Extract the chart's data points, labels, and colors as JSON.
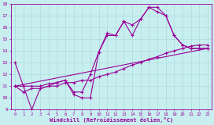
{
  "xlabel": "Windchill (Refroidissement éolien,°C)",
  "bg_color": "#c8eef0",
  "line_color": "#990099",
  "grid_color": "#aadddd",
  "xlim": [
    -0.5,
    23.5
  ],
  "ylim": [
    9,
    18
  ],
  "xticks": [
    0,
    1,
    2,
    3,
    4,
    5,
    6,
    7,
    8,
    9,
    10,
    11,
    12,
    13,
    14,
    15,
    16,
    17,
    18,
    19,
    20,
    21,
    22,
    23
  ],
  "yticks": [
    9,
    10,
    11,
    12,
    13,
    14,
    15,
    16,
    17,
    18
  ],
  "line1_x": [
    0,
    1,
    2,
    3,
    4,
    5,
    6,
    7,
    8,
    9,
    10,
    11,
    12,
    13,
    14,
    15,
    16,
    17,
    18,
    19,
    20,
    21,
    22,
    23
  ],
  "line1_y": [
    13.0,
    11.0,
    9.0,
    10.8,
    11.0,
    11.3,
    11.5,
    10.3,
    10.0,
    10.0,
    13.9,
    15.5,
    15.3,
    16.5,
    16.2,
    16.7,
    17.7,
    17.7,
    17.0,
    15.3,
    14.5,
    14.2,
    14.2,
    14.2
  ],
  "line2_x": [
    0,
    1,
    2,
    3,
    4,
    5,
    6,
    7,
    8,
    9,
    10,
    11,
    12,
    13,
    14,
    15,
    16,
    17,
    18,
    19,
    20,
    21,
    22,
    23
  ],
  "line2_y": [
    11.0,
    11.0,
    11.0,
    11.0,
    11.2,
    11.3,
    11.5,
    10.5,
    10.5,
    12.0,
    13.9,
    15.3,
    15.3,
    16.5,
    15.3,
    16.7,
    17.7,
    17.3,
    17.0,
    15.3,
    14.5,
    14.2,
    14.2,
    14.2
  ],
  "line3_x": [
    0,
    1,
    2,
    3,
    4,
    5,
    6,
    7,
    8,
    9,
    10,
    11,
    12,
    13,
    14,
    15,
    16,
    17,
    18,
    19,
    20,
    21,
    22,
    23
  ],
  "line3_y": [
    11.0,
    10.5,
    10.8,
    10.8,
    11.0,
    11.0,
    11.3,
    11.3,
    11.5,
    11.5,
    11.8,
    12.0,
    12.2,
    12.5,
    12.8,
    13.0,
    13.3,
    13.5,
    13.8,
    14.0,
    14.2,
    14.4,
    14.5,
    14.5
  ],
  "line4_x": [
    0,
    23
  ],
  "line4_y": [
    11.0,
    14.2
  ]
}
